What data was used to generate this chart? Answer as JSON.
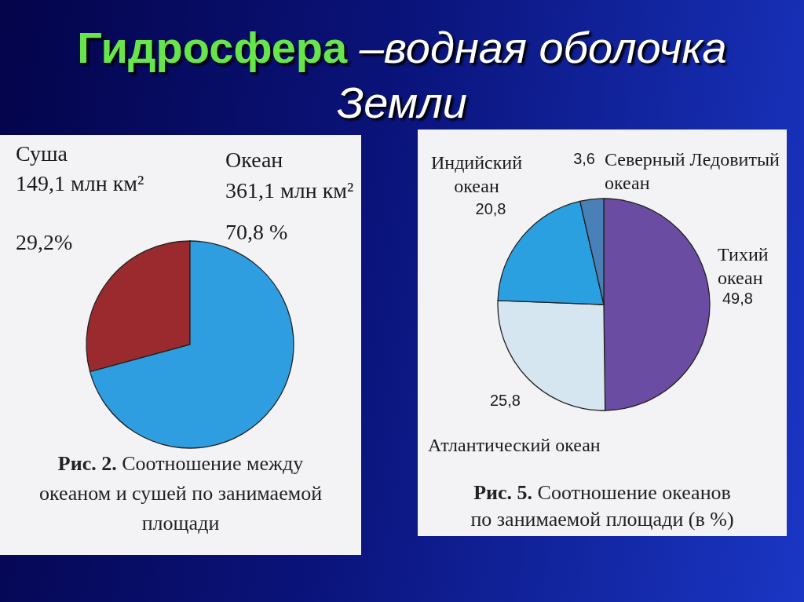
{
  "chart_data": [
    {
      "type": "pie",
      "title": "Гидросфера –водная оболочка Земли",
      "categories": [
        "Суша",
        "Океан"
      ],
      "values": [
        149.1,
        361.1
      ],
      "colors": [
        "#9b2a2e",
        "#2f9ee0"
      ],
      "value_labels": [
        "149,1 млн км²",
        "361,1 млн км²"
      ],
      "annotations": [
        {
          "text": "29,2%",
          "x": "Суша"
        },
        {
          "text": "70,8 %",
          "x": "Океан"
        },
        "Рис. 2. Соотношение между океаном и сушей по занимаемой площади"
      ]
    },
    {
      "type": "pie",
      "categories": [
        "Тихий океан",
        "Атлантический океан",
        "Индийский океан",
        "Северный Ледовитый океан"
      ],
      "values": [
        49.8,
        25.8,
        20.8,
        3.6
      ],
      "colors": [
        "#6a4ca2",
        "#d6e6f0",
        "#2aa0e0",
        "#4a80b8"
      ],
      "value_labels": [
        "49,8",
        "25,8",
        "20,8",
        "3,6"
      ],
      "annotations": [
        "Рис. 5. Соотношение океанов по занимаемой площади (в %)"
      ]
    }
  ]
}
